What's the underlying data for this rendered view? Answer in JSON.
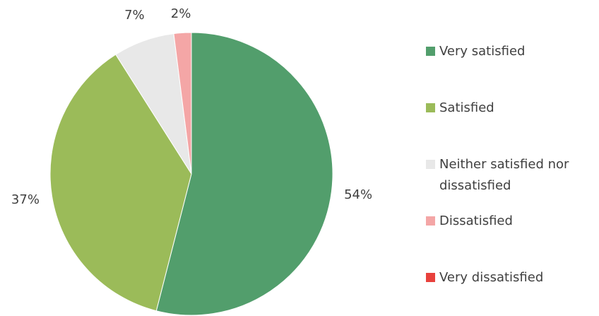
{
  "chart_data": {
    "type": "pie",
    "categories": [
      "Very satisfied",
      "Satisfied",
      "Neither satisfied nor dissatisfied",
      "Dissatisfied",
      "Very dissatisfied"
    ],
    "values": [
      54,
      37,
      7,
      2,
      0
    ],
    "value_labels": [
      "54%",
      "37%",
      "7%",
      "2%",
      null
    ],
    "colors": [
      "#529e6c",
      "#9bbb59",
      "#e8e8e8",
      "#f4a6a6",
      "#e8413c"
    ],
    "legend": "right"
  }
}
